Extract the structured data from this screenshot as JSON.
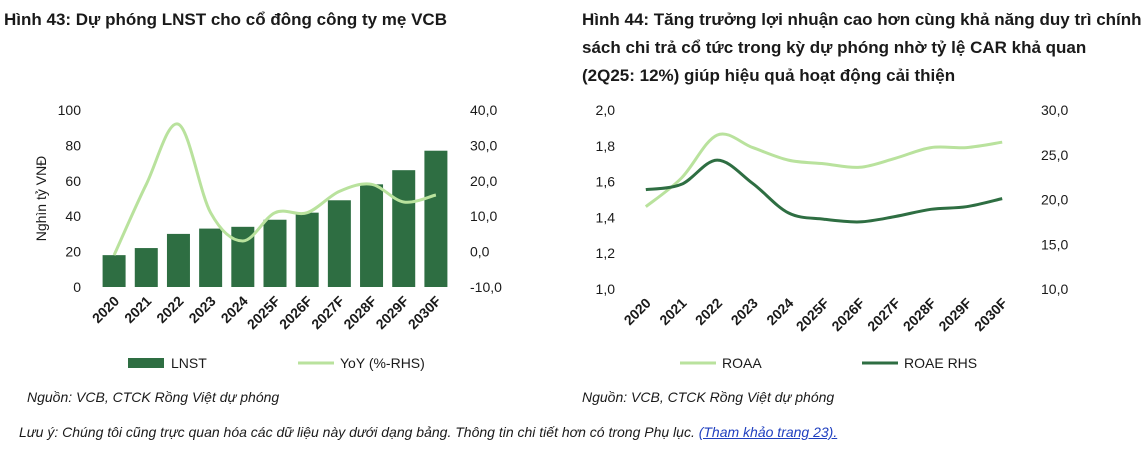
{
  "chart_data": [
    {
      "type": "bar",
      "title": "Hình 43: Dự phóng LNST cho cổ đông công ty mẹ VCB",
      "ylabel": "Nghìn tỷ VNĐ",
      "categories": [
        "2020",
        "2021",
        "2022",
        "2023",
        "2024",
        "2025F",
        "2026F",
        "2027F",
        "2028F",
        "2029F",
        "2030F"
      ],
      "ylim": [
        0,
        100
      ],
      "yticks": [
        "0",
        "20",
        "40",
        "60",
        "80",
        "100"
      ],
      "y2lim": [
        -10,
        40
      ],
      "y2ticks": [
        "-10,0",
        "0,0",
        "10,0",
        "20,0",
        "30,0",
        "40,0"
      ],
      "series": [
        {
          "name": "LNST",
          "type": "bar",
          "axis": "left",
          "color": "#2e6e42",
          "values": [
            18,
            22,
            30,
            33,
            34,
            38,
            42,
            49,
            58,
            66,
            77
          ]
        },
        {
          "name": "YoY (%-RHS)",
          "type": "line",
          "axis": "right",
          "color": "#b9e29d",
          "values": [
            -1,
            19,
            36,
            11,
            3,
            11,
            11,
            17,
            19,
            14,
            16
          ]
        }
      ],
      "legend": "bottom"
    },
    {
      "type": "line",
      "title": "Hình 44: Tăng trưởng lợi nhuận cao hơn cùng khả năng duy trì chính sách chi trả cổ tức trong kỳ dự phóng nhờ tỷ lệ CAR khả quan (2Q25: 12%) giúp hiệu quả hoạt động cải thiện",
      "categories": [
        "2020",
        "2021",
        "2022",
        "2023",
        "2024",
        "2025F",
        "2026F",
        "2027F",
        "2028F",
        "2029F",
        "2030F"
      ],
      "ylim": [
        1.0,
        2.0
      ],
      "yticks": [
        "1,0",
        "1,2",
        "1,4",
        "1,6",
        "1,8",
        "2,0"
      ],
      "y2lim": [
        10,
        30
      ],
      "y2ticks": [
        "10,0",
        "15,0",
        "20,0",
        "25,0",
        "30,0"
      ],
      "series": [
        {
          "name": "ROAA",
          "axis": "left",
          "color": "#b9e29d",
          "values": [
            1.46,
            1.62,
            1.86,
            1.79,
            1.72,
            1.7,
            1.68,
            1.73,
            1.79,
            1.79,
            1.82
          ]
        },
        {
          "name": "ROAE RHS",
          "axis": "right",
          "color": "#2e6e42",
          "values": [
            21.1,
            21.7,
            24.4,
            21.8,
            18.5,
            17.8,
            17.5,
            18.1,
            18.9,
            19.2,
            20.1
          ]
        }
      ],
      "legend": "bottom"
    }
  ],
  "sources": {
    "left": "Nguồn: VCB, CTCK Rồng Việt dự phóng",
    "right": "Nguồn: VCB, CTCK Rồng Việt dự phóng"
  },
  "note": {
    "text": "Lưu ý: Chúng tôi cũng trực quan hóa các dữ liệu này dưới dạng bảng. Thông tin chi tiết hơn có trong Phụ lục. ",
    "link": "(Tham khảo trang 23)."
  }
}
